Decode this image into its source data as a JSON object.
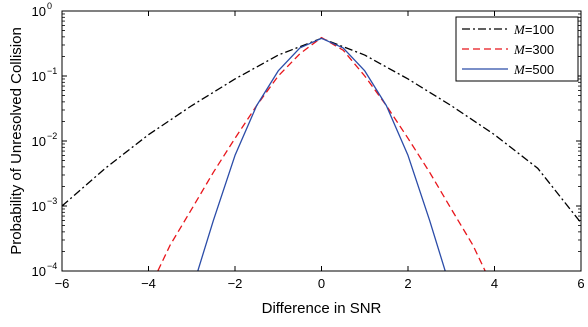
{
  "chart_data": {
    "type": "line",
    "xlabel": "Difference in SNR",
    "ylabel": "Probability of Unresolved Collision",
    "xlim": [
      -6,
      6
    ],
    "ylim": [
      0.0001,
      1
    ],
    "yscale": "log",
    "grid": false,
    "legend_placement": "top-right",
    "x_ticks": [
      -6,
      -4,
      -2,
      0,
      2,
      4,
      6
    ],
    "x_tick_labels": [
      "−6",
      "−4",
      "−2",
      "0",
      "2",
      "4",
      "6"
    ],
    "y_ticks": [
      0.0001,
      0.001,
      0.01,
      0.1,
      1
    ],
    "y_tick_base_labels": [
      "10",
      "10",
      "10",
      "10",
      "10"
    ],
    "y_tick_exponent_labels": [
      "−4",
      "−3",
      "−2",
      "−1",
      "0"
    ],
    "series": [
      {
        "name_italic": "M",
        "name_suffix": "=100",
        "color": "#000000",
        "dash": "dashdot",
        "x": [
          -6,
          -5,
          -4,
          -3,
          -2,
          -1,
          0,
          1,
          2,
          3,
          4,
          5,
          6
        ],
        "y": [
          0.001,
          0.0038,
          0.0125,
          0.035,
          0.09,
          0.21,
          0.38,
          0.21,
          0.09,
          0.035,
          0.0125,
          0.0038,
          0.00055
        ]
      },
      {
        "name_italic": "M",
        "name_suffix": "=300",
        "color": "#e8151b",
        "dash": "dashed",
        "x": [
          -4,
          -3.5,
          -3,
          -2.5,
          -2,
          -1.5,
          -1,
          -0.5,
          0,
          0.5,
          1,
          1.5,
          2,
          2.5,
          3,
          3.5,
          4
        ],
        "y": [
          5e-05,
          0.00025,
          0.0009,
          0.0033,
          0.011,
          0.035,
          0.1,
          0.22,
          0.39,
          0.25,
          0.1,
          0.035,
          0.011,
          0.0033,
          0.0009,
          0.00025,
          5e-05
        ]
      },
      {
        "name_italic": "M",
        "name_suffix": "=500",
        "color": "#2b4ca8",
        "dash": "solid",
        "x": [
          -3,
          -2.5,
          -2,
          -1.5,
          -1,
          -0.5,
          0,
          0.5,
          1,
          1.5,
          2,
          2.5,
          3
        ],
        "y": [
          5e-05,
          0.0006,
          0.006,
          0.035,
          0.12,
          0.27,
          0.38,
          0.27,
          0.12,
          0.035,
          0.006,
          0.0006,
          5e-05
        ]
      }
    ]
  }
}
